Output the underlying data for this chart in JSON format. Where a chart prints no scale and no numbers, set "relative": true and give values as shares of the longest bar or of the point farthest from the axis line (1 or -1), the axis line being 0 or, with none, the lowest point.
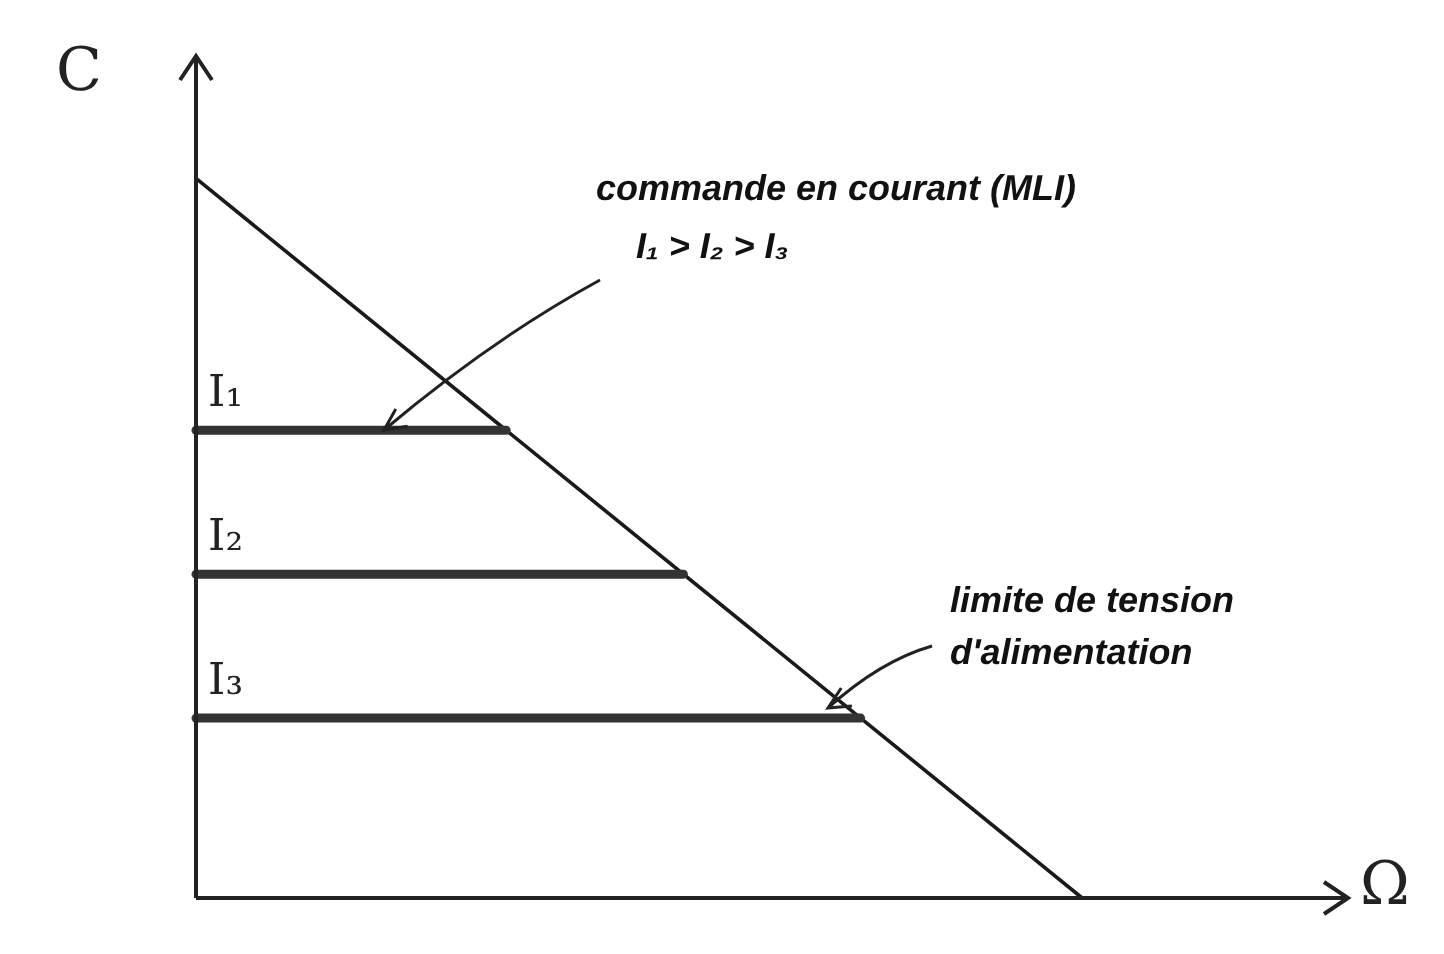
{
  "chart_data": {
    "type": "line",
    "relative": true,
    "xlabel": "Ω",
    "ylabel": "C",
    "categories": [
      null,
      null,
      null,
      null,
      null,
      null,
      null,
      null,
      null,
      null,
      null,
      null,
      null,
      null,
      null,
      null,
      null,
      null,
      null,
      null,
      null,
      null,
      null,
      null,
      null,
      null,
      null
    ],
    "legend": false,
    "grid": false,
    "marker": "none",
    "line_style": "solid",
    "series": [
      {
        "color": "#1a1a1a",
        "values": [
          1,
          null,
          null,
          null,
          null,
          null,
          null,
          null,
          null,
          null,
          null,
          null,
          null,
          null,
          null,
          null,
          null,
          null,
          null,
          null,
          0,
          null,
          null,
          null,
          null,
          null,
          null
        ]
      },
      {
        "name": "I₁",
        "color": "#333333",
        "values": [
          0.65,
          null,
          null,
          null,
          null,
          null,
          null,
          0.65,
          null,
          null,
          null,
          null,
          null,
          null,
          null,
          null,
          null,
          null,
          null,
          null,
          null,
          null,
          null,
          null,
          null,
          null,
          null
        ]
      },
      {
        "name": "I₂",
        "color": "#333333",
        "values": [
          0.45,
          null,
          null,
          null,
          null,
          null,
          null,
          null,
          null,
          null,
          null,
          0.45,
          null,
          null,
          null,
          null,
          null,
          null,
          null,
          null,
          null,
          null,
          null,
          null,
          null,
          null,
          null
        ]
      },
      {
        "name": "I₃",
        "color": "#333333",
        "values": [
          0.25,
          null,
          null,
          null,
          null,
          null,
          null,
          null,
          null,
          null,
          null,
          null,
          null,
          null,
          null,
          0.25,
          null,
          null,
          null,
          null,
          null,
          null,
          null,
          null,
          null,
          null,
          null
        ]
      }
    ],
    "annotations": [
      "commande en courant (MLI)",
      "I₁ > I₂ > I₃",
      "limite de tension d'alimentation"
    ]
  }
}
